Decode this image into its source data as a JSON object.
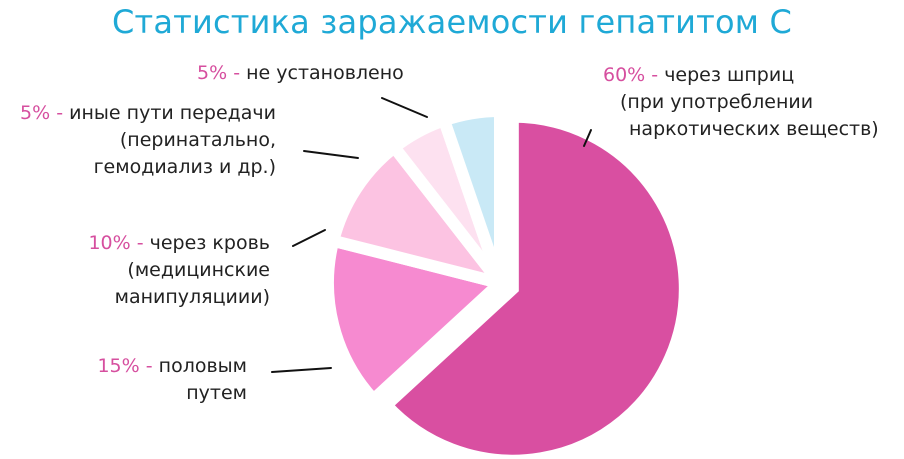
{
  "chart_data": {
    "type": "pie",
    "title": "Статистика заражаемости гепатитом С",
    "unit": "%",
    "slices": [
      {
        "value": 60,
        "percent_label": "60%",
        "separator": "-",
        "label_lines": [
          "через шприц",
          "(при употреблении",
          "наркотических веществ)"
        ],
        "color": "#d94fa1",
        "exploded": true
      },
      {
        "value": 15,
        "percent_label": "15%",
        "separator": "-",
        "label_lines": [
          "половым",
          "путем"
        ],
        "color": "#f68ad0",
        "exploded": false
      },
      {
        "value": 10,
        "percent_label": "10%",
        "separator": "-",
        "label_lines": [
          "через кровь",
          "(медицинские",
          "манипуляциии)"
        ],
        "color": "#fcc3e2",
        "exploded": false
      },
      {
        "value": 5,
        "percent_label": "5%",
        "separator": "-",
        "label_lines": [
          "иные пути передачи",
          "(перинатально,",
          "гемодиализ и др.)"
        ],
        "color": "#fde1f0",
        "exploded": false
      },
      {
        "value": 5,
        "percent_label": "5%",
        "separator": "-",
        "label_lines": [
          "не установлено"
        ],
        "color": "#c9e9f6",
        "exploded": false
      }
    ],
    "colors": {
      "title": "#1fa9d6",
      "percent": "#d64f9f",
      "text": "#222222",
      "leader": "#111111"
    }
  }
}
